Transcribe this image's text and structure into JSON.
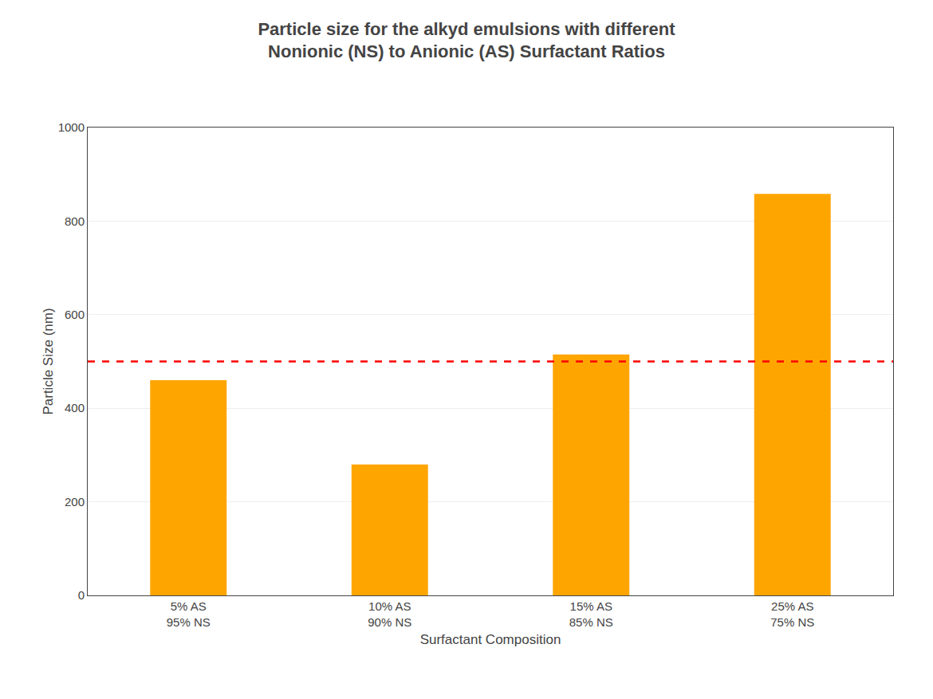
{
  "chart_data": {
    "type": "bar",
    "title": "Particle size for the alkyd emulsions with different\nNonionic (NS) to Anionic (AS) Surfactant Ratios",
    "x_label": "Surfactant Composition",
    "y_label": "Particle Size (nm)",
    "categories": [
      "5% AS\n95% NS",
      "10% AS\n90% NS",
      "15% AS\n85% NS",
      "25% AS\n75% NS"
    ],
    "values": [
      460,
      280,
      515,
      858
    ],
    "color": "#FFA500",
    "reference_line": {
      "y": 500,
      "color": "#FF0000",
      "line_style": "dashed"
    },
    "ylim": [
      0,
      1000
    ],
    "yticks": [
      0,
      200,
      400,
      600,
      800,
      1000
    ],
    "grid": true
  }
}
